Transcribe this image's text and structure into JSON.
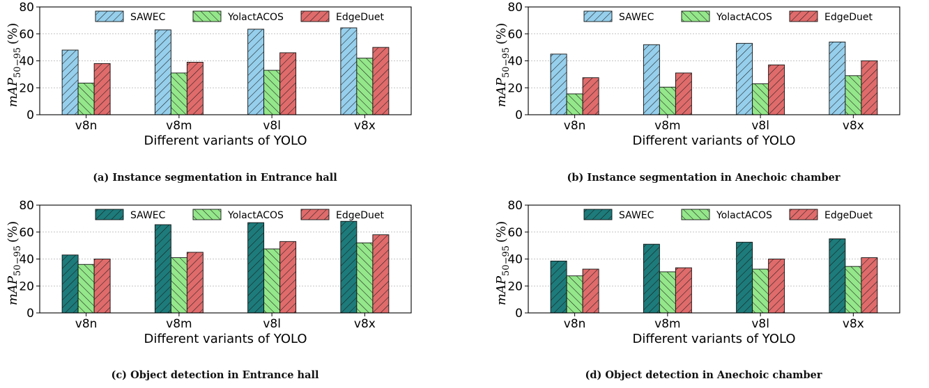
{
  "colors": {
    "sawec_light": "#96cfec",
    "sawec_dark": "#1d7b7b",
    "yolact": "#94e78a",
    "edgeduet": "#e06b6b",
    "grid": "#b0b0b0"
  },
  "chart_data": [
    {
      "type": "bar",
      "caption": "(a) Instance segmentation in Entrance hall",
      "categories": [
        "v8n",
        "v8m",
        "v8l",
        "v8x"
      ],
      "series": [
        {
          "name": "SAWEC",
          "color_key": "sawec_light",
          "values": [
            48,
            63,
            63.5,
            64.5
          ]
        },
        {
          "name": "YolactACOS",
          "color_key": "yolact",
          "values": [
            23.5,
            31,
            33,
            42
          ]
        },
        {
          "name": "EdgeDuet",
          "color_key": "edgeduet",
          "values": [
            38,
            39,
            46,
            50
          ]
        }
      ],
      "xlabel": "Different variants of YOLO",
      "ylabel_main": "mAP",
      "ylabel_sub": "50−95",
      "ylabel_unit": "(%)",
      "ylim": [
        0,
        80
      ],
      "yticks": [
        0,
        20,
        40,
        60,
        80
      ],
      "grid": true,
      "legend_position": "top"
    },
    {
      "type": "bar",
      "caption": "(b) Instance segmentation in Anechoic chamber",
      "categories": [
        "v8n",
        "v8m",
        "v8l",
        "v8x"
      ],
      "series": [
        {
          "name": "SAWEC",
          "color_key": "sawec_light",
          "values": [
            45,
            52,
            53,
            54
          ]
        },
        {
          "name": "YolactACOS",
          "color_key": "yolact",
          "values": [
            15.5,
            20.5,
            23,
            29
          ]
        },
        {
          "name": "EdgeDuet",
          "color_key": "edgeduet",
          "values": [
            27.5,
            31,
            37,
            40
          ]
        }
      ],
      "xlabel": "Different variants of YOLO",
      "ylabel_main": "mAP",
      "ylabel_sub": "50−95",
      "ylabel_unit": "(%)",
      "ylim": [
        0,
        80
      ],
      "yticks": [
        0,
        20,
        40,
        60,
        80
      ],
      "grid": true,
      "legend_position": "top"
    },
    {
      "type": "bar",
      "caption": "(c) Object detection in Entrance hall",
      "categories": [
        "v8n",
        "v8m",
        "v8l",
        "v8x"
      ],
      "series": [
        {
          "name": "SAWEC",
          "color_key": "sawec_dark",
          "values": [
            43,
            65.5,
            67,
            68
          ]
        },
        {
          "name": "YolactACOS",
          "color_key": "yolact",
          "values": [
            36,
            41,
            47.5,
            52
          ]
        },
        {
          "name": "EdgeDuet",
          "color_key": "edgeduet",
          "values": [
            40,
            45,
            53,
            58
          ]
        }
      ],
      "xlabel": "Different variants of YOLO",
      "ylabel_main": "mAP",
      "ylabel_sub": "50−95",
      "ylabel_unit": "(%)",
      "ylim": [
        0,
        80
      ],
      "yticks": [
        0,
        20,
        40,
        60,
        80
      ],
      "grid": true,
      "legend_position": "top"
    },
    {
      "type": "bar",
      "caption": "(d) Object detection in Anechoic chamber",
      "categories": [
        "v8n",
        "v8m",
        "v8l",
        "v8x"
      ],
      "series": [
        {
          "name": "SAWEC",
          "color_key": "sawec_dark",
          "values": [
            38.5,
            51,
            52.5,
            55
          ]
        },
        {
          "name": "YolactACOS",
          "color_key": "yolact",
          "values": [
            27.5,
            30.5,
            32.5,
            34.5
          ]
        },
        {
          "name": "EdgeDuet",
          "color_key": "edgeduet",
          "values": [
            32.5,
            33.5,
            40,
            41
          ]
        }
      ],
      "xlabel": "Different variants of YOLO",
      "ylabel_main": "mAP",
      "ylabel_sub": "50−95",
      "ylabel_unit": "(%)",
      "ylim": [
        0,
        80
      ],
      "yticks": [
        0,
        20,
        40,
        60,
        80
      ],
      "grid": true,
      "legend_position": "top"
    }
  ]
}
